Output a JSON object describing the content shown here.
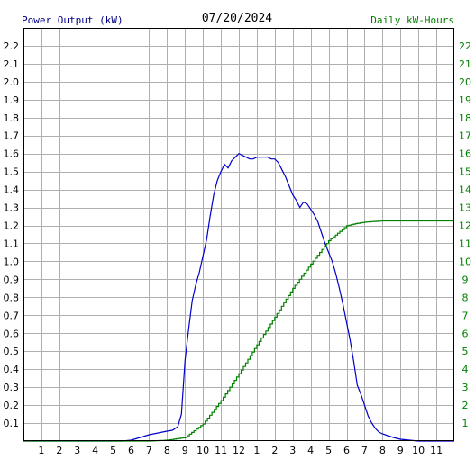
{
  "chart_data": {
    "type": "line",
    "title": "07/20/2024",
    "ylabel_left": "Power Output (kW)",
    "ylabel_right": "Daily kW-Hours",
    "colors": {
      "left": "#000080",
      "right": "#008000",
      "power": "#0000cc",
      "energy": "#008000",
      "grid": "#b0b0b0",
      "frame": "#000000"
    },
    "x_categories": [
      "1",
      "2",
      "3",
      "4",
      "5",
      "6",
      "7",
      "8",
      "9",
      "10",
      "11",
      "12",
      "1",
      "2",
      "3",
      "4",
      "5",
      "6",
      "7",
      "8",
      "9",
      "10",
      "11"
    ],
    "ylim_left": [
      0,
      2.3
    ],
    "yticks_left": [
      "0.1",
      "0.2",
      "0.3",
      "0.4",
      "0.5",
      "0.6",
      "0.7",
      "0.8",
      "0.9",
      "1.0",
      "1.1",
      "1.2",
      "1.3",
      "1.4",
      "1.5",
      "1.6",
      "1.7",
      "1.8",
      "1.9",
      "2.0",
      "2.1",
      "2.2"
    ],
    "ylim_right": [
      0,
      23
    ],
    "yticks_right": [
      "1",
      "2",
      "3",
      "4",
      "5",
      "6",
      "7",
      "8",
      "9",
      "10",
      "11",
      "12",
      "13",
      "14",
      "15",
      "16",
      "17",
      "18",
      "19",
      "20",
      "21",
      "22"
    ],
    "grid": true,
    "series": [
      {
        "name": "Power Output (kW)",
        "axis": "left",
        "x_hours": [
          0,
          5.5,
          6,
          6.5,
          7,
          7.5,
          8,
          8.3,
          8.6,
          8.8,
          9,
          9.2,
          9.4,
          9.6,
          9.8,
          10,
          10.2,
          10.4,
          10.6,
          10.8,
          11,
          11.2,
          11.4,
          11.6,
          11.8,
          12,
          12.2,
          12.4,
          12.6,
          12.8,
          13,
          13.2,
          13.4,
          13.6,
          13.8,
          14,
          14.2,
          14.4,
          14.6,
          14.8,
          15,
          15.2,
          15.4,
          15.6,
          15.8,
          16,
          16.2,
          16.4,
          16.6,
          16.8,
          17,
          17.2,
          17.4,
          17.6,
          17.8,
          18,
          18.2,
          18.4,
          18.6,
          18.8,
          19,
          19.2,
          19.4,
          19.6,
          19.8,
          20,
          20.3,
          20.6,
          21,
          21.5,
          22,
          24
        ],
        "values": [
          0,
          0,
          0.005,
          0.02,
          0.035,
          0.045,
          0.055,
          0.06,
          0.08,
          0.15,
          0.45,
          0.62,
          0.78,
          0.87,
          0.94,
          1.03,
          1.12,
          1.25,
          1.37,
          1.45,
          1.5,
          1.54,
          1.52,
          1.56,
          1.58,
          1.6,
          1.59,
          1.58,
          1.57,
          1.57,
          1.58,
          1.58,
          1.58,
          1.58,
          1.57,
          1.57,
          1.55,
          1.51,
          1.47,
          1.42,
          1.37,
          1.34,
          1.3,
          1.33,
          1.32,
          1.29,
          1.26,
          1.22,
          1.16,
          1.1,
          1.05,
          1.0,
          0.93,
          0.85,
          0.76,
          0.66,
          0.56,
          0.44,
          0.31,
          0.26,
          0.2,
          0.14,
          0.1,
          0.07,
          0.05,
          0.04,
          0.03,
          0.02,
          0.01,
          0.005,
          0,
          0
        ]
      },
      {
        "name": "Daily kW-Hours",
        "axis": "right",
        "x_hours": [
          0,
          7,
          8,
          9,
          10,
          11,
          12,
          13,
          14,
          15,
          16,
          17,
          18,
          18.5,
          19,
          19.5,
          20,
          24
        ],
        "values": [
          0,
          0,
          0.05,
          0.2,
          0.95,
          2.25,
          3.75,
          5.35,
          6.9,
          8.5,
          9.85,
          11.15,
          11.98,
          12.1,
          12.18,
          12.22,
          12.25,
          12.25
        ]
      }
    ]
  }
}
